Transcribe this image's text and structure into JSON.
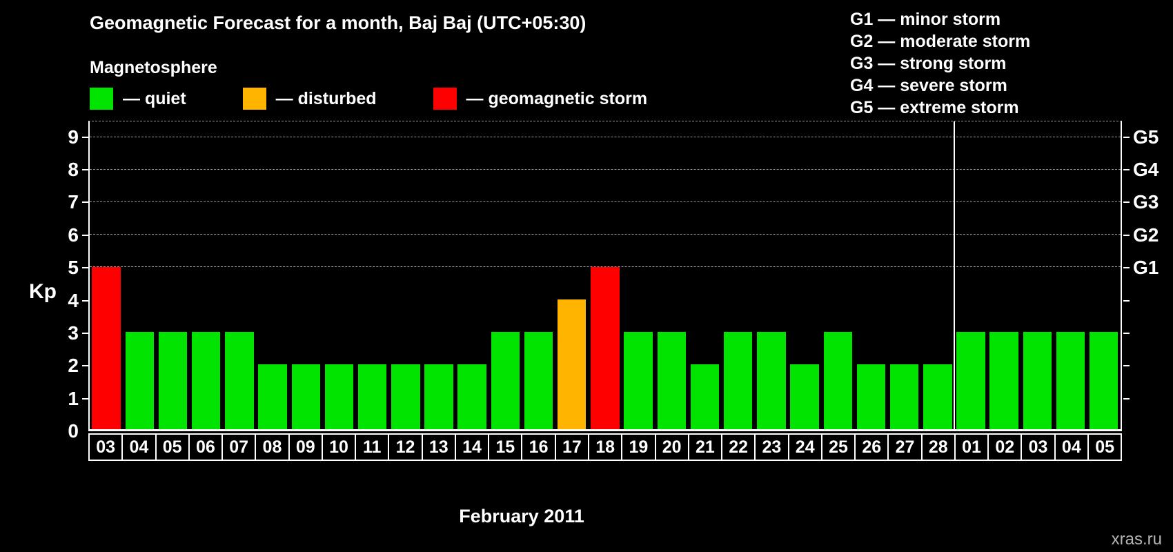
{
  "legend": {
    "heading": "Magnetosphere",
    "items": [
      {
        "name": "quiet",
        "label": "— quiet",
        "color": "#00e400"
      },
      {
        "name": "disturbed",
        "label": "— disturbed",
        "color": "#ffb400"
      },
      {
        "name": "storm",
        "label": "— geomagnetic storm",
        "color": "#ff0000"
      }
    ]
  },
  "storm_scale": {
    "lines": [
      "G1 — minor storm",
      "G2 — moderate storm",
      "G3 — strong storm",
      "G4 — severe storm",
      "G5 — extreme storm"
    ]
  },
  "chart_data": {
    "type": "bar",
    "title": "Geomagnetic Forecast for a month, Baj Baj (UTC+05:30)",
    "ylabel": "Kp",
    "xlabel": "February 2011",
    "ylim": [
      0,
      9.5
    ],
    "yticks": [
      0,
      1,
      2,
      3,
      4,
      5,
      6,
      7,
      8,
      9
    ],
    "gridlines": [
      5,
      6,
      7,
      8,
      9
    ],
    "grid_style": "dashed",
    "right_axis": [
      {
        "label": "G1",
        "value": 5
      },
      {
        "label": "G2",
        "value": 6
      },
      {
        "label": "G3",
        "value": 7
      },
      {
        "label": "G4",
        "value": 8
      },
      {
        "label": "G5",
        "value": 9
      }
    ],
    "categories": [
      "03",
      "04",
      "05",
      "06",
      "07",
      "08",
      "09",
      "10",
      "11",
      "12",
      "13",
      "14",
      "15",
      "16",
      "17",
      "18",
      "19",
      "20",
      "21",
      "22",
      "23",
      "24",
      "25",
      "26",
      "27",
      "28",
      "01",
      "02",
      "03",
      "04",
      "05"
    ],
    "values": [
      5,
      3,
      3,
      3,
      3,
      2,
      2,
      2,
      2,
      2,
      2,
      2,
      3,
      3,
      4,
      5,
      3,
      3,
      2,
      3,
      3,
      2,
      3,
      2,
      2,
      2,
      3,
      3,
      3,
      3,
      3
    ],
    "colors": {
      "quiet": "#00e400",
      "disturbed": "#ffb400",
      "storm": "#ff0000"
    },
    "color_thresholds": {
      "disturbed": 4,
      "storm": 5
    },
    "separator_after": 26
  },
  "watermark": "xras.ru"
}
